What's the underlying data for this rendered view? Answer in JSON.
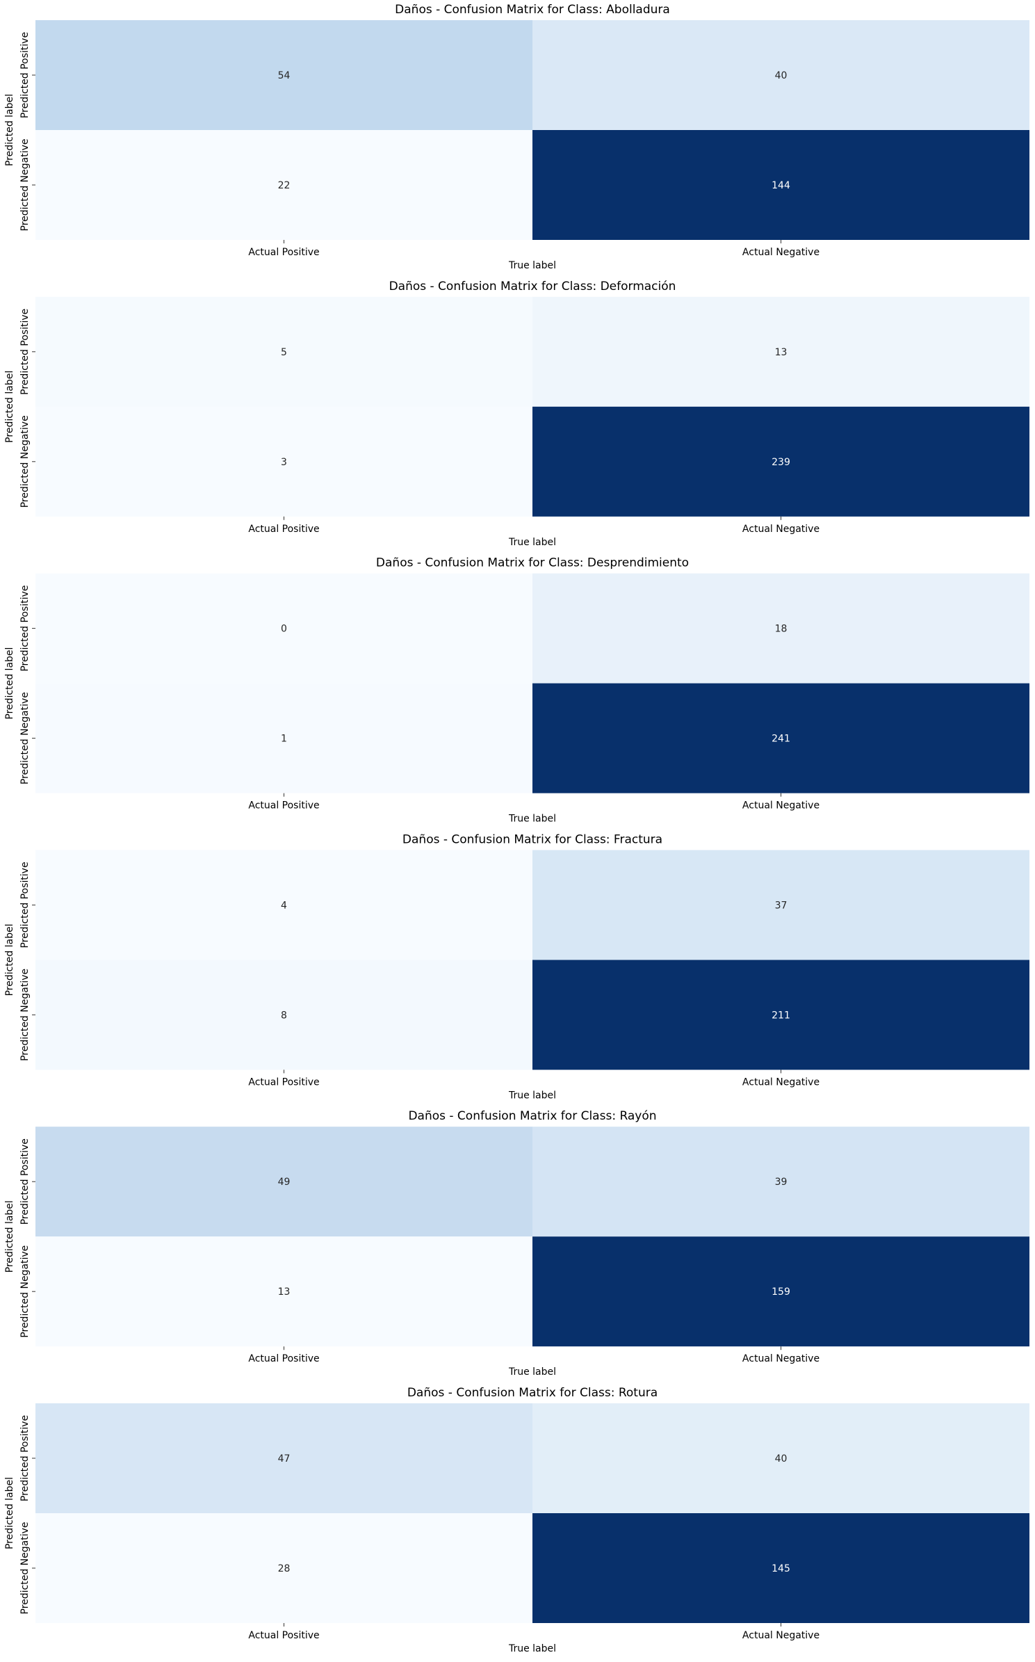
{
  "figure": {
    "background": "#ffffff",
    "colormap": "Blues",
    "low_color": "#f7fbff",
    "high_color": "#08306b"
  },
  "chart_data": [
    {
      "type": "heatmap",
      "title": "Daños - Confusion Matrix for Class: Abolladura",
      "xlabel": "True label",
      "ylabel": "Predicted label",
      "x_categories": [
        "Actual Positive",
        "Actual Negative"
      ],
      "y_categories": [
        "Predicted Positive",
        "Predicted Negative"
      ],
      "values": [
        [
          54,
          40
        ],
        [
          22,
          144
        ]
      ],
      "colorbar": false
    },
    {
      "type": "heatmap",
      "title": "Daños - Confusion Matrix for Class: Deformación",
      "xlabel": "True label",
      "ylabel": "Predicted label",
      "x_categories": [
        "Actual Positive",
        "Actual Negative"
      ],
      "y_categories": [
        "Predicted Positive",
        "Predicted Negative"
      ],
      "values": [
        [
          5,
          13
        ],
        [
          3,
          239
        ]
      ],
      "colorbar": false
    },
    {
      "type": "heatmap",
      "title": "Daños - Confusion Matrix for Class: Desprendimiento",
      "xlabel": "True label",
      "ylabel": "Predicted label",
      "x_categories": [
        "Actual Positive",
        "Actual Negative"
      ],
      "y_categories": [
        "Predicted Positive",
        "Predicted Negative"
      ],
      "values": [
        [
          0,
          18
        ],
        [
          1,
          241
        ]
      ],
      "colorbar": false
    },
    {
      "type": "heatmap",
      "title": "Daños - Confusion Matrix for Class: Fractura",
      "xlabel": "True label",
      "ylabel": "Predicted label",
      "x_categories": [
        "Actual Positive",
        "Actual Negative"
      ],
      "y_categories": [
        "Predicted Positive",
        "Predicted Negative"
      ],
      "values": [
        [
          4,
          37
        ],
        [
          8,
          211
        ]
      ],
      "colorbar": false
    },
    {
      "type": "heatmap",
      "title": "Daños - Confusion Matrix for Class: Rayón",
      "xlabel": "True label",
      "ylabel": "Predicted label",
      "x_categories": [
        "Actual Positive",
        "Actual Negative"
      ],
      "y_categories": [
        "Predicted Positive",
        "Predicted Negative"
      ],
      "values": [
        [
          49,
          39
        ],
        [
          13,
          159
        ]
      ],
      "colorbar": false
    },
    {
      "type": "heatmap",
      "title": "Daños - Confusion Matrix for Class: Rotura",
      "xlabel": "True label",
      "ylabel": "Predicted label",
      "x_categories": [
        "Actual Positive",
        "Actual Negative"
      ],
      "y_categories": [
        "Predicted Positive",
        "Predicted Negative"
      ],
      "values": [
        [
          47,
          40
        ],
        [
          28,
          145
        ]
      ],
      "colorbar": false
    }
  ]
}
